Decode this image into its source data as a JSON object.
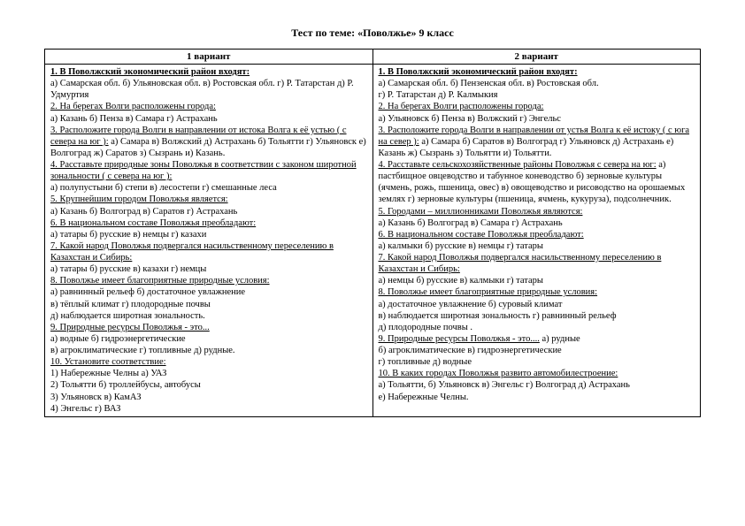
{
  "title": "Тест по теме: «Поволжье»   9 класс",
  "col1_header": "1 вариант",
  "col2_header": "2 вариант",
  "v1": {
    "q1": "1. В Поволжский экономический район входят:",
    "q1a": "а) Самарская обл.     б) Ульяновская обл.    в) Ростовская обл.     г) Р. Татарстан    д) Р. Удмуртия",
    "q2": "2. На берегах Волги расположены города:",
    "q2a": "а) Казань  б) Пенза  в) Самара  г) Астрахань",
    "q3": "3. Расположите города Волги в направлении  от истока Волга к её устью ( с севера на юг ):",
    "q3a": "а) Самара  в) Волжский   д) Астрахань    б) Тольятти  г) Ульяновск    е) Волгоград    ж) Саратов   з) Сызрань   и)  Казань.",
    "q4": "4. Расставьте природные зоны Поволжья в  соответствии с законом  широтной  зональности  ( с севера на юг ):",
    "q4a": "а) полупустыни  б) степи   в) лесостепи   г) смешанные леса",
    "q5": "5. Крупнейшим городом Поволжья  является:",
    "q5a": "а) Казань б) Волгоград в) Саратов г) Астрахань",
    "q6": "6. В национальном составе Поволжья преобладают:",
    "q6a": "  а) татары б) русские  в) немцы  г) казахи",
    "q7": "7. Какой народ Поволжья подвергался насильственному переселению в Казахстан и Сибирь:",
    "q7a": "а) татары  б) русские  в) казахи  г) немцы",
    "q8": "8. Поволжье имеет благоприятные природные условия:",
    "q8a": "а) равнинный рельеф    б) достаточное   увлажнение",
    "q8b": "в) тёплый климат     г) плодородные почвы",
    "q8c": " д) наблюдается широтная  зональность.",
    "q9": "9.  Природные ресурсы  Поволжья - это...",
    "q9a": " а) водные     б) гидроэнергетические",
    "q9b": " в) агроклиматические  г) топливные    д) рудные.",
    "q10": "10. Установите соответствие:",
    "q10a": "1) Набережные Челны       а) УАЗ",
    "q10b": "2) Тольятти                           б) троллейбусы, автобусы",
    "q10c": "3) Ульяновск                          в) КамАЗ",
    "q10d": "4) Энгельс                              г) ВАЗ"
  },
  "v2": {
    "q1": "1. В Поволжский экономический район входят:",
    "q1a": "а) Самарская обл.   б) Пензенская обл.   в) Ростовская обл.",
    "q1b": "    г) Р. Татарстан        д)  Р. Калмыкия",
    "q2": "2. На берегах Волги расположены города:",
    "q2a": "  а) Ульяновск  б) Пенза  в) Волжский  г) Энгельс",
    "q3": "3. Расположите города Волги в направлении от устья  Волга к её истоку ( с юга на север ):",
    "q3a": "а) Самара  б) Саратов     в) Волгоград     г) Ульяновск   д) Астрахань  е) Казань   ж) Сызрань   з) Тольятти   и) Тольятти.",
    "q4": "4. Расставьте  сельскохозяйственные районы Поволжья  с севера на юг:",
    "q4a": "а) пастбищное овцеводство и табунное коневодство    б) зерновые культуры (ячмень, рожь, пшеница, овес)    в) овощеводство и рисоводство на орошаемых землях   г) зерновые культуры (пшеница, ячмень, кукуруза), подсолнечник.",
    "q5": "5. Городами  – миллионниками  Поволжья  являются:",
    "q5a": "а) Казань б) Волгоград в) Самара  г) Астрахань",
    "q6": "6. В национальном составе Поволжья преобладают:",
    "q6a": "  а) калмыки     б) русские  в) немцы   г) татары",
    "q7": "7. Какой народ Поволжья подвергался насильственному переселению в Казахстан и Сибирь:",
    "q7a": "   а) немцы  б) русские  в) калмыки  г) татары",
    "q8": "8. Поволжье имеет благоприятные природные условия:",
    "q8a": " а) достаточное   увлажнение            б) суровый климат",
    "q8b": " в) наблюдается широтная зональность    г) равнинный рельеф",
    "q8c": " д) плодородные почвы .",
    "q9": "9.  Природные ресурсы  Поволжья - это....",
    "q9a": "а) рудные",
    "q9b": " б) агроклиматические    в) гидроэнергетические",
    "q9c": " г) топливные       д) водные",
    "q10": "10. В каких городах Поволжья  развито автомобилестроение:",
    "q10a": "а) Тольятти, б) Ульяновск  в) Энгельс  г) Волгоград  д) Астрахань",
    "q10b": "е)  Набережные Челны."
  }
}
